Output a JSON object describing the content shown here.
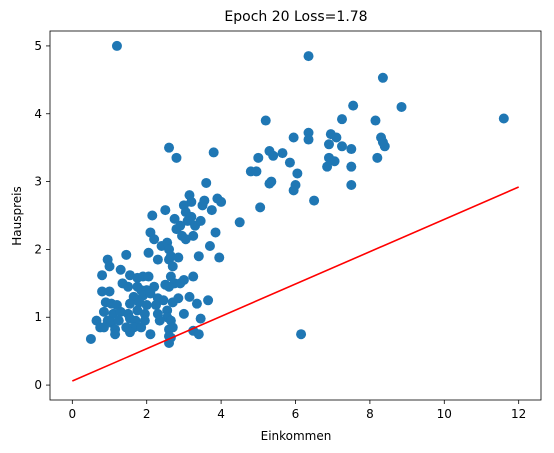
{
  "chart_data": {
    "type": "scatter",
    "title": "Epoch 20 Loss=1.78",
    "xlabel": "Einkommen",
    "ylabel": "Hauspreis",
    "xlim": [
      -0.6,
      12.6
    ],
    "ylim": [
      -0.22,
      5.22
    ],
    "xticks": [
      0,
      2,
      4,
      6,
      8,
      10,
      12
    ],
    "yticks": [
      0,
      1,
      2,
      3,
      4,
      5
    ],
    "grid": false,
    "colors": {
      "points": "#1f77b4",
      "line": "#ff0000",
      "axes": "#000000",
      "background": "#ffffff"
    },
    "series": [
      {
        "type": "scatter",
        "points": [
          [
            1.2,
            5.0
          ],
          [
            6.35,
            4.85
          ],
          [
            8.35,
            4.53
          ],
          [
            7.55,
            4.12
          ],
          [
            8.85,
            4.1
          ],
          [
            11.6,
            3.93
          ],
          [
            5.2,
            3.9
          ],
          [
            7.25,
            3.92
          ],
          [
            8.15,
            3.9
          ],
          [
            6.35,
            3.72
          ],
          [
            6.95,
            3.7
          ],
          [
            7.1,
            3.65
          ],
          [
            6.9,
            3.55
          ],
          [
            8.3,
            3.65
          ],
          [
            8.35,
            3.58
          ],
          [
            8.4,
            3.52
          ],
          [
            6.35,
            3.62
          ],
          [
            5.95,
            3.65
          ],
          [
            7.25,
            3.52
          ],
          [
            7.5,
            3.48
          ],
          [
            5.4,
            3.38
          ],
          [
            5.3,
            3.45
          ],
          [
            5.65,
            3.42
          ],
          [
            5.85,
            3.28
          ],
          [
            5.0,
            3.35
          ],
          [
            6.9,
            3.35
          ],
          [
            7.05,
            3.3
          ],
          [
            6.85,
            3.22
          ],
          [
            8.2,
            3.35
          ],
          [
            7.5,
            3.22
          ],
          [
            4.8,
            3.15
          ],
          [
            4.95,
            3.15
          ],
          [
            6.05,
            3.12
          ],
          [
            5.35,
            3.0
          ],
          [
            5.3,
            2.97
          ],
          [
            6.0,
            2.95
          ],
          [
            5.95,
            2.87
          ],
          [
            7.5,
            2.95
          ],
          [
            6.5,
            2.72
          ],
          [
            5.05,
            2.62
          ],
          [
            4.5,
            2.4
          ],
          [
            2.6,
            3.5
          ],
          [
            3.8,
            3.43
          ],
          [
            2.8,
            3.35
          ],
          [
            3.6,
            2.98
          ],
          [
            3.15,
            2.8
          ],
          [
            3.0,
            2.65
          ],
          [
            3.2,
            2.7
          ],
          [
            3.5,
            2.65
          ],
          [
            3.55,
            2.72
          ],
          [
            3.75,
            2.58
          ],
          [
            3.9,
            2.75
          ],
          [
            4.0,
            2.7
          ],
          [
            2.15,
            2.5
          ],
          [
            2.5,
            2.58
          ],
          [
            2.75,
            2.45
          ],
          [
            3.05,
            2.55
          ],
          [
            3.2,
            2.48
          ],
          [
            3.1,
            2.42
          ],
          [
            3.3,
            2.35
          ],
          [
            3.45,
            2.42
          ],
          [
            2.8,
            2.3
          ],
          [
            2.9,
            2.35
          ],
          [
            2.95,
            2.2
          ],
          [
            2.1,
            2.25
          ],
          [
            2.2,
            2.15
          ],
          [
            3.05,
            2.15
          ],
          [
            3.25,
            2.2
          ],
          [
            3.85,
            2.25
          ],
          [
            2.4,
            2.05
          ],
          [
            2.55,
            2.1
          ],
          [
            2.6,
            2.0
          ],
          [
            3.7,
            2.05
          ],
          [
            1.45,
            1.92
          ],
          [
            2.05,
            1.95
          ],
          [
            2.3,
            1.85
          ],
          [
            2.6,
            1.85
          ],
          [
            2.65,
            1.9
          ],
          [
            2.85,
            1.88
          ],
          [
            3.4,
            1.9
          ],
          [
            3.95,
            1.88
          ],
          [
            0.95,
            1.85
          ],
          [
            1.0,
            1.75
          ],
          [
            1.3,
            1.7
          ],
          [
            2.7,
            1.75
          ],
          [
            0.8,
            1.62
          ],
          [
            1.55,
            1.62
          ],
          [
            1.75,
            1.58
          ],
          [
            1.9,
            1.6
          ],
          [
            2.05,
            1.6
          ],
          [
            2.65,
            1.6
          ],
          [
            3.0,
            1.55
          ],
          [
            3.25,
            1.6
          ],
          [
            1.35,
            1.5
          ],
          [
            1.5,
            1.45
          ],
          [
            1.75,
            1.45
          ],
          [
            2.5,
            1.48
          ],
          [
            2.75,
            1.5
          ],
          [
            2.9,
            1.5
          ],
          [
            1.85,
            1.4
          ],
          [
            2.0,
            1.4
          ],
          [
            2.2,
            1.45
          ],
          [
            2.6,
            1.45
          ],
          [
            0.8,
            1.38
          ],
          [
            1.0,
            1.38
          ],
          [
            1.65,
            1.3
          ],
          [
            1.9,
            1.32
          ],
          [
            2.1,
            1.35
          ],
          [
            2.3,
            1.28
          ],
          [
            2.45,
            1.25
          ],
          [
            2.7,
            1.22
          ],
          [
            2.85,
            1.28
          ],
          [
            3.15,
            1.3
          ],
          [
            0.9,
            1.22
          ],
          [
            1.05,
            1.2
          ],
          [
            1.2,
            1.18
          ],
          [
            1.55,
            1.2
          ],
          [
            1.8,
            1.22
          ],
          [
            2.0,
            1.18
          ],
          [
            2.25,
            1.18
          ],
          [
            2.55,
            1.1
          ],
          [
            3.35,
            1.2
          ],
          [
            3.65,
            1.25
          ],
          [
            0.85,
            1.08
          ],
          [
            1.1,
            1.05
          ],
          [
            1.3,
            1.08
          ],
          [
            1.5,
            1.05
          ],
          [
            1.75,
            1.1
          ],
          [
            1.95,
            1.05
          ],
          [
            2.3,
            1.05
          ],
          [
            2.55,
            1.0
          ],
          [
            3.0,
            1.05
          ],
          [
            0.65,
            0.95
          ],
          [
            0.95,
            0.95
          ],
          [
            1.05,
            0.92
          ],
          [
            1.25,
            0.95
          ],
          [
            1.55,
            0.98
          ],
          [
            1.7,
            0.95
          ],
          [
            1.95,
            0.95
          ],
          [
            2.35,
            0.95
          ],
          [
            2.65,
            0.95
          ],
          [
            3.45,
            0.98
          ],
          [
            0.75,
            0.85
          ],
          [
            0.85,
            0.85
          ],
          [
            1.15,
            0.82
          ],
          [
            1.45,
            0.85
          ],
          [
            1.65,
            0.85
          ],
          [
            1.85,
            0.85
          ],
          [
            2.6,
            0.82
          ],
          [
            2.7,
            0.85
          ],
          [
            3.25,
            0.8
          ],
          [
            1.15,
            0.75
          ],
          [
            1.55,
            0.78
          ],
          [
            2.1,
            0.75
          ],
          [
            2.6,
            0.72
          ],
          [
            2.65,
            0.7
          ],
          [
            3.4,
            0.75
          ],
          [
            6.15,
            0.75
          ],
          [
            0.5,
            0.68
          ],
          [
            2.6,
            0.62
          ]
        ]
      },
      {
        "type": "line",
        "points": [
          [
            0,
            0.06
          ],
          [
            12,
            2.92
          ]
        ]
      }
    ]
  }
}
